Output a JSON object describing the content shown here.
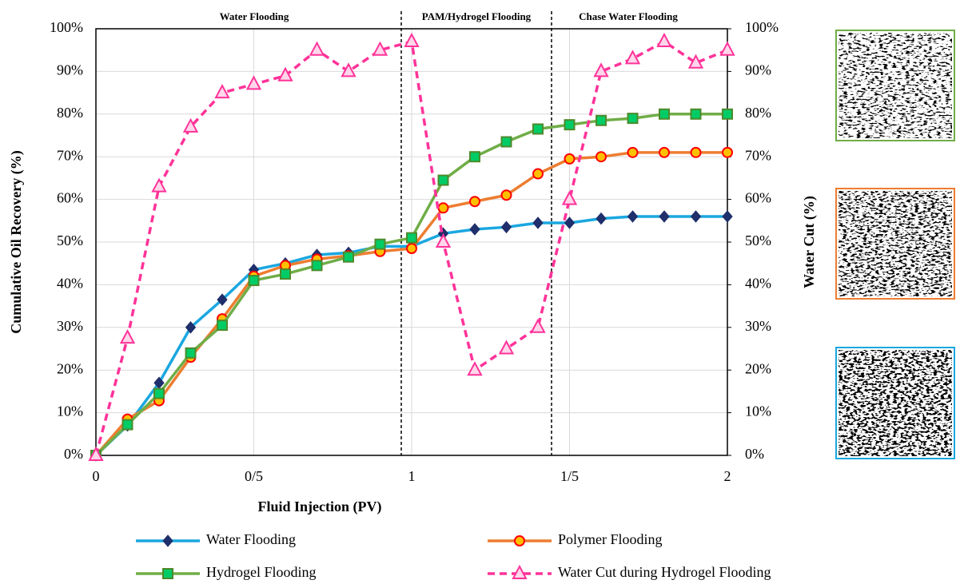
{
  "chart_data": {
    "type": "line",
    "annotations": [
      "Water Flooding",
      "PAM/Hydrogel Flooding",
      "Chase Water Flooding"
    ],
    "xlabel": "Fluid Injection (PV)",
    "ylabel": "Cumulative Oil Recovery (%)",
    "y2label": "Water Cut (%)",
    "x": [
      0,
      0.1,
      0.2,
      0.3,
      0.4,
      0.5,
      0.6,
      0.7,
      0.8,
      0.9,
      1.0,
      1.1,
      1.2,
      1.3,
      1.4,
      1.5,
      1.6,
      1.7,
      1.8,
      1.9,
      2.0
    ],
    "series": [
      {
        "name": "Water Flooding",
        "color": "#1aa7e0",
        "marker": "diamond",
        "marker_color": "#1f2f6b",
        "marker_edge": "#1f2f6b",
        "dash": false,
        "values": [
          0,
          7,
          17,
          30,
          36.5,
          43.5,
          45,
          47,
          47.5,
          49,
          49,
          52,
          53,
          53.5,
          54.5,
          54.5,
          55.5,
          56,
          56,
          56,
          56
        ]
      },
      {
        "name": "Polymer Flooding",
        "color": "#ed7d31",
        "marker": "circle",
        "marker_color": "#ffc000",
        "marker_edge": "#ff0000",
        "dash": false,
        "values": [
          0,
          8.5,
          12.8,
          23,
          32,
          42,
          44.5,
          46,
          46.8,
          47.8,
          48.5,
          58,
          59.5,
          61,
          66,
          69.5,
          70,
          71,
          71,
          71,
          71
        ]
      },
      {
        "name": "Hydrogel Flooding",
        "color": "#70ad47",
        "marker": "square",
        "marker_color": "#00cc66",
        "marker_edge": "#4e8a2c",
        "dash": false,
        "values": [
          0,
          7.2,
          14.5,
          24,
          30.5,
          41,
          42.5,
          44.5,
          46.5,
          49.5,
          51,
          64.5,
          70,
          73.5,
          76.5,
          77.5,
          78.5,
          79,
          80,
          80,
          80
        ]
      },
      {
        "name": "Water Cut during Hydrogel Flooding",
        "color": "#ff3399",
        "marker": "triangle",
        "marker_color": "#ffd6ea",
        "marker_edge": "#ff3399",
        "dash": true,
        "axis": "y2",
        "values": [
          0,
          27.5,
          63,
          77,
          85,
          87,
          89,
          95,
          90,
          95,
          97,
          50,
          20,
          25,
          30,
          60,
          90,
          93,
          97,
          92,
          95
        ]
      }
    ],
    "xlim": [
      0,
      2
    ],
    "xticks": [
      0,
      {
        "value": 0.5,
        "label": "0/5"
      },
      1,
      {
        "value": 1.5,
        "label": "1/5"
      },
      2
    ],
    "ylim": [
      0,
      100
    ],
    "yticks": [
      {
        "value": 0,
        "label": "0%"
      },
      {
        "value": 10,
        "label": "10%"
      },
      {
        "value": 20,
        "label": "20%"
      },
      {
        "value": 30,
        "label": "30%"
      },
      {
        "value": 40,
        "label": "40%"
      },
      {
        "value": 50,
        "label": "50%"
      },
      {
        "value": 60,
        "label": "60%"
      },
      {
        "value": 70,
        "label": "70%"
      },
      {
        "value": 80,
        "label": "80%"
      },
      {
        "value": 90,
        "label": "90%"
      },
      {
        "value": 100,
        "label": "100%"
      }
    ],
    "y2lim": [
      0,
      100
    ],
    "y2ticks": [
      {
        "value": 0,
        "label": "0%"
      },
      {
        "value": 10,
        "label": "10%"
      },
      {
        "value": 20,
        "label": "20%"
      },
      {
        "value": 30,
        "label": "30%"
      },
      {
        "value": 40,
        "label": "40%"
      },
      {
        "value": 50,
        "label": "50%"
      },
      {
        "value": 60,
        "label": "60%"
      },
      {
        "value": 70,
        "label": "70%"
      },
      {
        "value": 80,
        "label": "80%"
      },
      {
        "value": 90,
        "label": "90%"
      },
      {
        "value": 100,
        "label": "100%"
      }
    ],
    "grid": true,
    "legend": "bottom"
  }
}
